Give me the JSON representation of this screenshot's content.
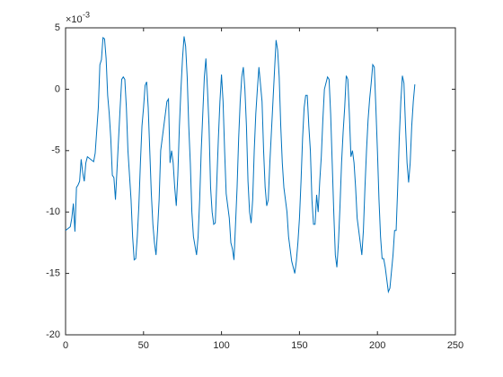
{
  "chart_data": {
    "type": "line",
    "exponent_base": "×10",
    "exponent": "-3",
    "x": [
      0,
      1,
      2,
      3,
      4,
      5,
      6,
      7,
      8,
      9,
      10,
      11,
      12,
      13,
      14,
      15,
      16,
      17,
      18,
      19,
      21,
      22,
      23,
      24,
      25,
      26,
      27,
      28,
      29,
      30,
      31,
      32,
      33,
      34,
      35,
      36,
      37,
      38,
      39,
      40,
      42,
      43,
      44,
      45,
      46,
      47,
      48,
      49,
      50,
      51,
      52,
      53,
      54,
      55,
      56,
      57,
      58,
      59,
      60,
      61,
      63,
      64,
      65,
      66,
      67,
      68,
      69,
      70,
      71,
      72,
      73,
      74,
      75,
      76,
      77,
      78,
      79,
      80,
      81,
      82,
      84,
      85,
      86,
      87,
      88,
      89,
      90,
      91,
      92,
      93,
      94,
      95,
      96,
      97,
      98,
      99,
      100,
      101,
      102,
      103,
      105,
      106,
      107,
      108,
      109,
      110,
      111,
      112,
      113,
      114,
      115,
      116,
      117,
      118,
      119,
      120,
      121,
      122,
      123,
      124,
      126,
      127,
      128,
      129,
      130,
      131,
      132,
      133,
      134,
      135,
      136,
      137,
      138,
      139,
      140,
      141,
      142,
      143,
      144,
      145,
      147,
      148,
      149,
      150,
      151,
      152,
      153,
      154,
      155,
      156,
      157,
      158,
      159,
      160,
      161,
      162,
      163,
      164,
      165,
      166,
      168,
      169,
      170,
      171,
      172,
      173,
      174,
      175,
      176,
      177,
      178,
      179,
      180,
      181,
      182,
      183,
      184,
      185,
      186,
      187,
      189,
      190,
      191,
      192,
      193,
      194,
      195,
      196,
      197,
      198,
      199,
      200,
      201,
      202,
      203,
      204,
      205,
      206,
      207,
      208,
      210,
      211,
      212,
      213,
      214,
      215,
      216,
      217,
      218,
      219,
      220,
      221,
      222,
      223,
      224
    ],
    "series": [
      {
        "color": "#0072bd",
        "values": [
          -11.5,
          -11.4,
          -11.3,
          -11.2,
          -10.5,
          -9.3,
          -11.6,
          -8,
          -7.8,
          -7.5,
          -5.7,
          -6.8,
          -7.5,
          -6,
          -5.5,
          -5.6,
          -5.7,
          -5.8,
          -5.9,
          -5.2,
          -1.5,
          2,
          2.4,
          4.2,
          4.1,
          2.5,
          -0.5,
          -2,
          -4,
          -7,
          -7.2,
          -9,
          -6.5,
          -4,
          -1.5,
          0.8,
          1,
          0.8,
          -1.5,
          -5,
          -9,
          -12,
          -13.9,
          -13.8,
          -12,
          -9.5,
          -6,
          -3,
          -1.5,
          0.3,
          0.6,
          -1.5,
          -5,
          -8.5,
          -11,
          -12.5,
          -13.5,
          -11.5,
          -9,
          -5,
          -3,
          -2,
          -1,
          -0.8,
          -6,
          -5,
          -6,
          -8,
          -9.5,
          -7,
          -3,
          0,
          2.5,
          4.3,
          3.5,
          1,
          -3,
          -6,
          -10,
          -12,
          -13.5,
          -12,
          -9,
          -5,
          -2,
          1,
          2.5,
          0,
          -3,
          -8,
          -10,
          -11,
          -10.9,
          -7.5,
          -4,
          -1,
          1.2,
          -1,
          -5,
          -8.5,
          -10.5,
          -12.5,
          -13,
          -13.9,
          -11,
          -8,
          -4,
          -1,
          1,
          1.8,
          0,
          -3,
          -7.5,
          -10,
          -10.9,
          -9,
          -5,
          -2,
          0,
          1.8,
          -1,
          -5,
          -8,
          -9.5,
          -9,
          -6,
          -3.5,
          -1,
          1.5,
          4,
          3.2,
          1,
          -3,
          -6,
          -8,
          -9,
          -10,
          -12,
          -13,
          -14,
          -15,
          -14,
          -12.5,
          -10.5,
          -7.5,
          -4,
          -1.5,
          -0.5,
          -0.5,
          -3,
          -5,
          -9,
          -11,
          -11,
          -8.6,
          -10,
          -7.5,
          -5.5,
          -2.5,
          0,
          1,
          0.8,
          -2,
          -6,
          -10,
          -13.5,
          -14.5,
          -12.5,
          -9.5,
          -6,
          -3.5,
          -1.5,
          1.1,
          0.8,
          -2,
          -5.5,
          -5,
          -6,
          -8,
          -10.5,
          -12.5,
          -13.5,
          -11.5,
          -8,
          -5,
          -2.5,
          -0.8,
          0.5,
          2,
          1.8,
          -1.5,
          -5,
          -9,
          -12,
          -13.8,
          -13.8,
          -14.5,
          -15.5,
          -16.5,
          -16.2,
          -13.5,
          -11.5,
          -11.5,
          -8,
          -4,
          -1,
          1.1,
          0.5,
          -3,
          -6,
          -7.6,
          -6,
          -3,
          -1,
          0.4
        ]
      }
    ],
    "xlim": [
      0,
      250
    ],
    "xticks": [
      0,
      50,
      100,
      150,
      200,
      250
    ],
    "ylim": [
      -20,
      5
    ],
    "yticks": [
      -20,
      -15,
      -10,
      -5,
      0,
      5
    ]
  }
}
